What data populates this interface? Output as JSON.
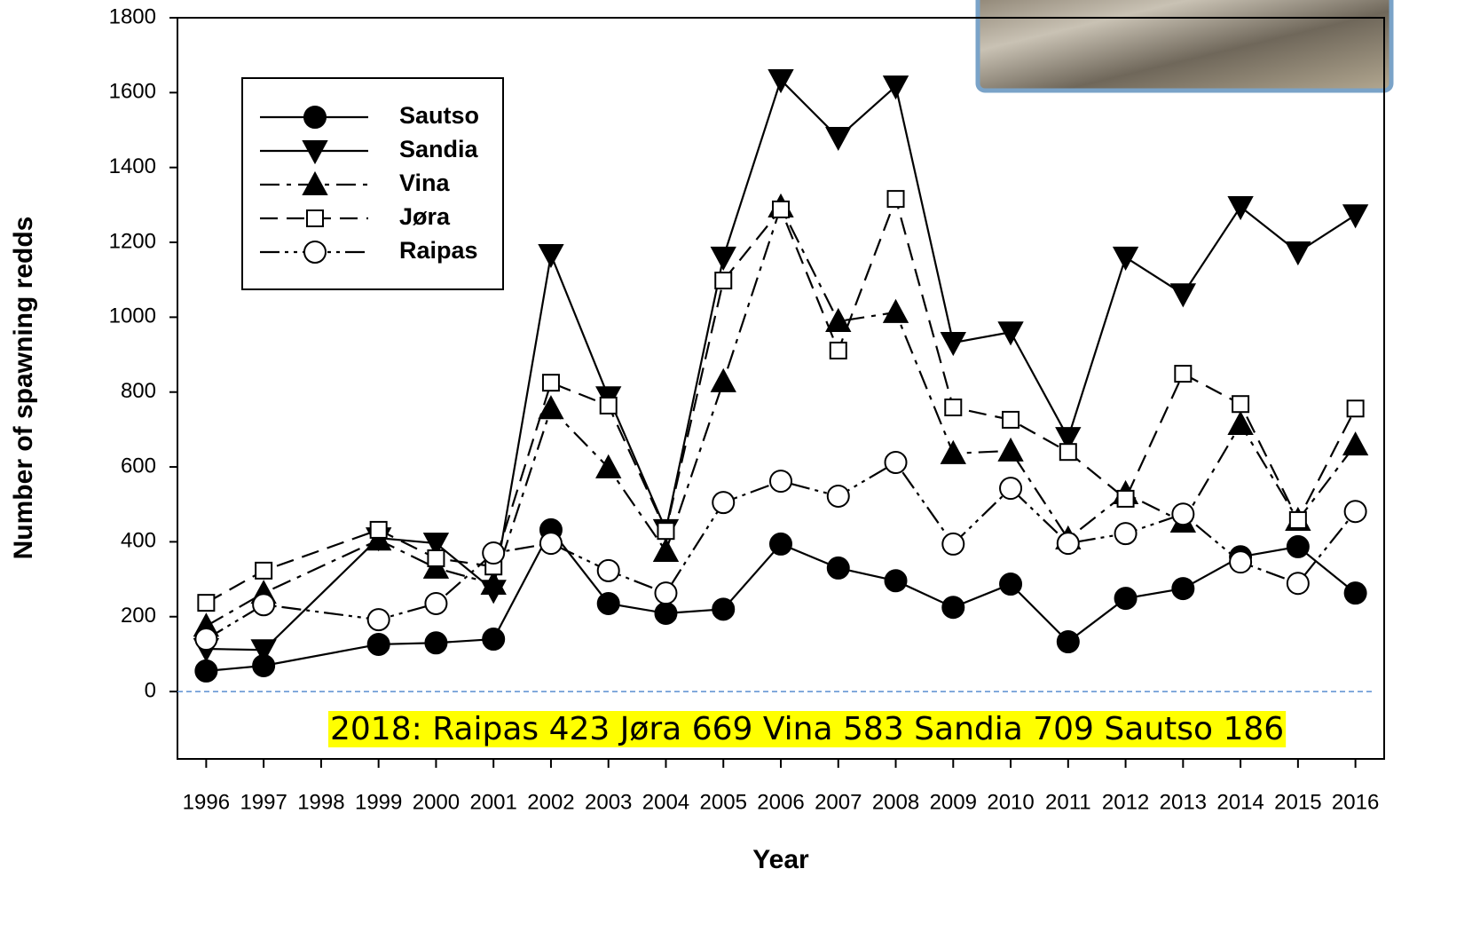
{
  "chart_data": {
    "type": "line",
    "xlabel": "Year",
    "ylabel": "Number of spawning redds",
    "annotation": "2018: Raipas 423 Jøra 669 Vina 583 Sandia 709 Sautso 186",
    "x": [
      1996,
      1997,
      1999,
      2000,
      2001,
      2002,
      2003,
      2004,
      2005,
      2006,
      2007,
      2008,
      2009,
      2010,
      2011,
      2012,
      2013,
      2014,
      2015,
      2016
    ],
    "xlim": [
      1995.5,
      2016.5
    ],
    "xticks": [
      1996,
      1997,
      1998,
      1999,
      2000,
      2001,
      2002,
      2003,
      2004,
      2005,
      2006,
      2007,
      2008,
      2009,
      2010,
      2011,
      2012,
      2013,
      2014,
      2015,
      2016
    ],
    "ylim": [
      -180,
      1800
    ],
    "yticks": [
      0,
      200,
      400,
      600,
      800,
      1000,
      1200,
      1400,
      1600,
      1800
    ],
    "zero_line": true,
    "legend": "upper left",
    "series": [
      {
        "name": "Sautso",
        "color": "#000000",
        "linestyle": "solid",
        "marker": "circle",
        "marker_fill": "#000000",
        "values": [
          55,
          69,
          126,
          130,
          140,
          432,
          235,
          209,
          220,
          394,
          330,
          296,
          225,
          287,
          133,
          249,
          275,
          360,
          387,
          263
        ]
      },
      {
        "name": "Sandia",
        "color": "#000000",
        "linestyle": "solid",
        "marker": "triangle-down",
        "marker_fill": "#000000",
        "values": [
          114,
          111,
          410,
          396,
          270,
          1167,
          787,
          432,
          1160,
          1634,
          1480,
          1617,
          932,
          960,
          678,
          1160,
          1062,
          1295,
          1174,
          1273
        ]
      },
      {
        "name": "Vina",
        "color": "#000000",
        "linestyle": "dashdot",
        "marker": "triangle-up",
        "marker_fill": "#000000",
        "values": [
          175,
          263,
          405,
          330,
          287,
          756,
          598,
          375,
          828,
          1295,
          989,
          1013,
          636,
          643,
          408,
          529,
          453,
          714,
          458,
          659
        ]
      },
      {
        "name": "Jøra",
        "color": "#000000",
        "linestyle": "dashed",
        "marker": "square",
        "marker_fill": "#ffffff",
        "values": [
          237,
          323,
          432,
          356,
          334,
          825,
          764,
          429,
          1098,
          1288,
          911,
          1316,
          759,
          726,
          640,
          515,
          849,
          768,
          458,
          756
        ]
      },
      {
        "name": "Raipas",
        "color": "#000000",
        "linestyle": "dashdotdot",
        "marker": "circle",
        "marker_fill": "#ffffff",
        "values": [
          140,
          232,
          192,
          235,
          370,
          396,
          323,
          263,
          505,
          562,
          522,
          612,
          394,
          543,
          396,
          422,
          474,
          346,
          289,
          481
        ]
      }
    ]
  }
}
